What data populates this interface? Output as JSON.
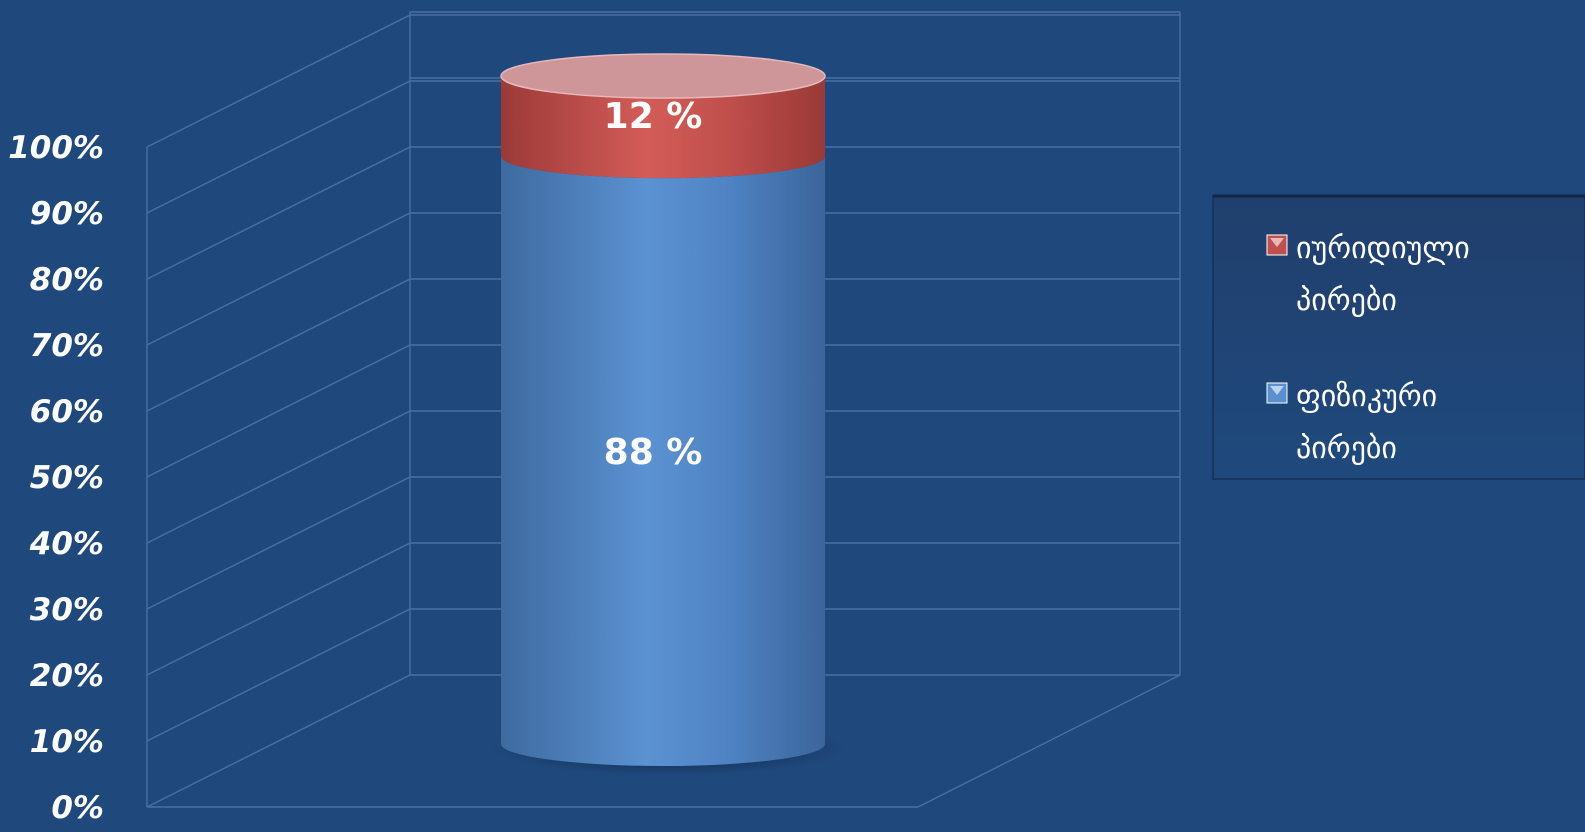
{
  "chart_data": {
    "type": "bar",
    "stacked": true,
    "percent": true,
    "yticks": [
      "0%",
      "10%",
      "20%",
      "30%",
      "40%",
      "50%",
      "60%",
      "70%",
      "80%",
      "90%",
      "100%"
    ],
    "ylim": [
      0,
      100
    ],
    "series": [
      {
        "name": "ფიზიკური პირები",
        "legend_lines": [
          "ფიზიკური",
          "პირები"
        ],
        "value": 88,
        "label": "88 %",
        "color": "#5a8fd0"
      },
      {
        "name": "იურიდიული პირები",
        "legend_lines": [
          "იურიდიული",
          "პირები"
        ],
        "value": 12,
        "label": "12 %",
        "color": "#c0504d"
      }
    ],
    "legend_position": "right",
    "grid": true,
    "background_color": "#1f497d"
  }
}
